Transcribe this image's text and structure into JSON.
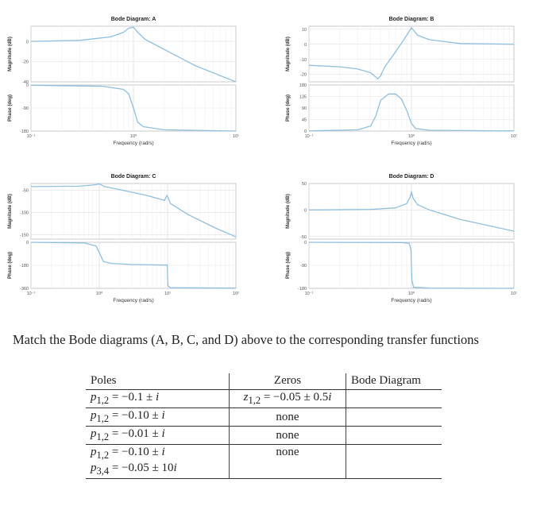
{
  "chart_data": [
    {
      "type": "line",
      "title": "Bode Diagram: A",
      "xlabel": "Frequency  (rad/s)",
      "ylabel_mag": "Magnitude (dB)",
      "ylabel_phase": "Phase (deg)",
      "xscale": "log",
      "xlim": [
        0.1,
        10
      ],
      "mag_ylim": [
        -40,
        15
      ],
      "mag_ticks": [
        "0",
        "-20",
        "-40"
      ],
      "phase_ylim": [
        -180,
        0
      ],
      "phase_ticks": [
        "0",
        "-90",
        "-180"
      ],
      "x_ticks": [
        "10⁻¹",
        "10⁰",
        "10¹"
      ],
      "grid": true,
      "magnitude": {
        "x": [
          0.1,
          0.3,
          0.6,
          0.8,
          0.9,
          1.0,
          1.1,
          1.3,
          2,
          4,
          10
        ],
        "y": [
          0,
          1,
          4.5,
          9,
          13,
          14,
          9,
          2,
          -8,
          -24,
          -40
        ]
      },
      "phase": {
        "x": [
          0.1,
          0.5,
          0.8,
          0.9,
          1.0,
          1.1,
          1.25,
          2,
          10
        ],
        "y": [
          -1,
          -5,
          -17,
          -35,
          -90,
          -145,
          -163,
          -175,
          -180
        ]
      }
    },
    {
      "type": "line",
      "title": "Bode Diagram: B",
      "xlabel": "Frequency  (rad/s)",
      "ylabel_mag": "Magnitude (dB)",
      "ylabel_phase": "Phase (deg)",
      "xscale": "log",
      "xlim": [
        0.1,
        10
      ],
      "mag_ylim": [
        -25,
        12
      ],
      "mag_ticks": [
        "10",
        "0",
        "-10",
        "-20"
      ],
      "phase_ylim": [
        0,
        180
      ],
      "phase_ticks": [
        "180",
        "135",
        "90",
        "45",
        "0"
      ],
      "x_ticks": [
        "10⁻¹",
        "10⁰",
        "10¹"
      ],
      "grid": true,
      "magnitude": {
        "x": [
          0.1,
          0.2,
          0.3,
          0.4,
          0.47,
          0.5,
          0.55,
          0.7,
          0.9,
          1.0,
          1.15,
          1.5,
          3,
          10
        ],
        "y": [
          -14,
          -15,
          -16.5,
          -19,
          -23,
          -21,
          -15,
          -5,
          6,
          11,
          6,
          3,
          0.5,
          0
        ]
      },
      "phase": {
        "x": [
          0.1,
          0.3,
          0.4,
          0.45,
          0.5,
          0.6,
          0.7,
          0.8,
          0.9,
          1.0,
          1.1,
          1.5,
          10
        ],
        "y": [
          0.5,
          5,
          20,
          60,
          120,
          145,
          145,
          125,
          80,
          30,
          10,
          3,
          0.5
        ]
      }
    },
    {
      "type": "line",
      "title": "Bode Diagram: C",
      "xlabel": "Frequency  (rad/s)",
      "ylabel_mag": "Magnitude (dB)",
      "ylabel_phase": "Phase (deg)",
      "xscale": "log",
      "xlim": [
        0.1,
        100
      ],
      "mag_ylim": [
        -160,
        -35
      ],
      "mag_ticks": [
        "-50",
        "-100",
        "-150"
      ],
      "phase_ylim": [
        -360,
        0
      ],
      "phase_ticks": [
        "0",
        "-180",
        "-360"
      ],
      "x_ticks": [
        "10⁻¹",
        "10⁰",
        "10¹",
        "10²"
      ],
      "grid": true,
      "magnitude": {
        "x": [
          0.1,
          0.5,
          0.8,
          1.0,
          1.2,
          2,
          5,
          9,
          9.8,
          10.2,
          11,
          20,
          50,
          100
        ],
        "y": [
          -42,
          -41,
          -38.5,
          -36,
          -42,
          -49,
          -62,
          -73,
          -62,
          -67,
          -80,
          -105,
          -135,
          -155
        ]
      },
      "phase": {
        "x": [
          0.1,
          0.6,
          0.9,
          1.0,
          1.15,
          1.5,
          3,
          9,
          9.9,
          10.1,
          11,
          100
        ],
        "y": [
          0,
          -5,
          -30,
          -80,
          -150,
          -165,
          -174,
          -178,
          -178,
          -340,
          -355,
          -358
        ]
      }
    },
    {
      "type": "line",
      "title": "Bode Diagram: D",
      "xlabel": "Frequency  (rad/s)",
      "ylabel_mag": "Magnitude (dB)",
      "ylabel_phase": "Phase (deg)",
      "xscale": "log",
      "xlim": [
        0.1,
        10
      ],
      "mag_ylim": [
        -55,
        50
      ],
      "mag_ticks": [
        "50",
        "0",
        "-50"
      ],
      "phase_ylim": [
        -180,
        0
      ],
      "phase_ticks": [
        "0",
        "-90",
        "-180"
      ],
      "x_ticks": [
        "10⁻¹",
        "10⁰",
        "10¹"
      ],
      "grid": true,
      "magnitude": {
        "x": [
          0.1,
          0.4,
          0.7,
          0.9,
          0.97,
          1.0,
          1.04,
          1.15,
          1.5,
          3,
          10
        ],
        "y": [
          0,
          1,
          4,
          12,
          24,
          34,
          22,
          10,
          0,
          -18,
          -40
        ]
      },
      "phase": {
        "x": [
          0.1,
          0.8,
          0.95,
          0.99,
          1.0,
          1.01,
          1.05,
          1.5,
          10
        ],
        "y": [
          0,
          -1,
          -4,
          -30,
          -90,
          -150,
          -176,
          -179,
          -180
        ]
      }
    }
  ],
  "prompt": "Match the Bode diagrams (A, B, C, and D) above to the corresponding transfer functions",
  "table": {
    "headers": [
      "Poles",
      "Zeros",
      "Bode Diagram"
    ],
    "rows": [
      {
        "poles": [
          "p",
          "1,2",
          " = −0.1 ± ",
          "i"
        ],
        "zeros": [
          "z",
          "1,2",
          " = −0.05 ± 0.5",
          "i"
        ],
        "bode": ""
      },
      {
        "poles": [
          "p",
          "1,2",
          " = −0.10 ± ",
          "i"
        ],
        "zeros_text": "none",
        "bode": ""
      },
      {
        "poles": [
          "p",
          "1,2",
          " = −0.01 ± ",
          "i"
        ],
        "zeros_text": "none",
        "bode": ""
      },
      {
        "poles": [
          "p",
          "1,2",
          " = −0.10 ± ",
          "i"
        ],
        "poles2": [
          "p",
          "3,4",
          " = −0.05 ± 10",
          "i"
        ],
        "zeros_text": "none",
        "bode": ""
      }
    ]
  }
}
